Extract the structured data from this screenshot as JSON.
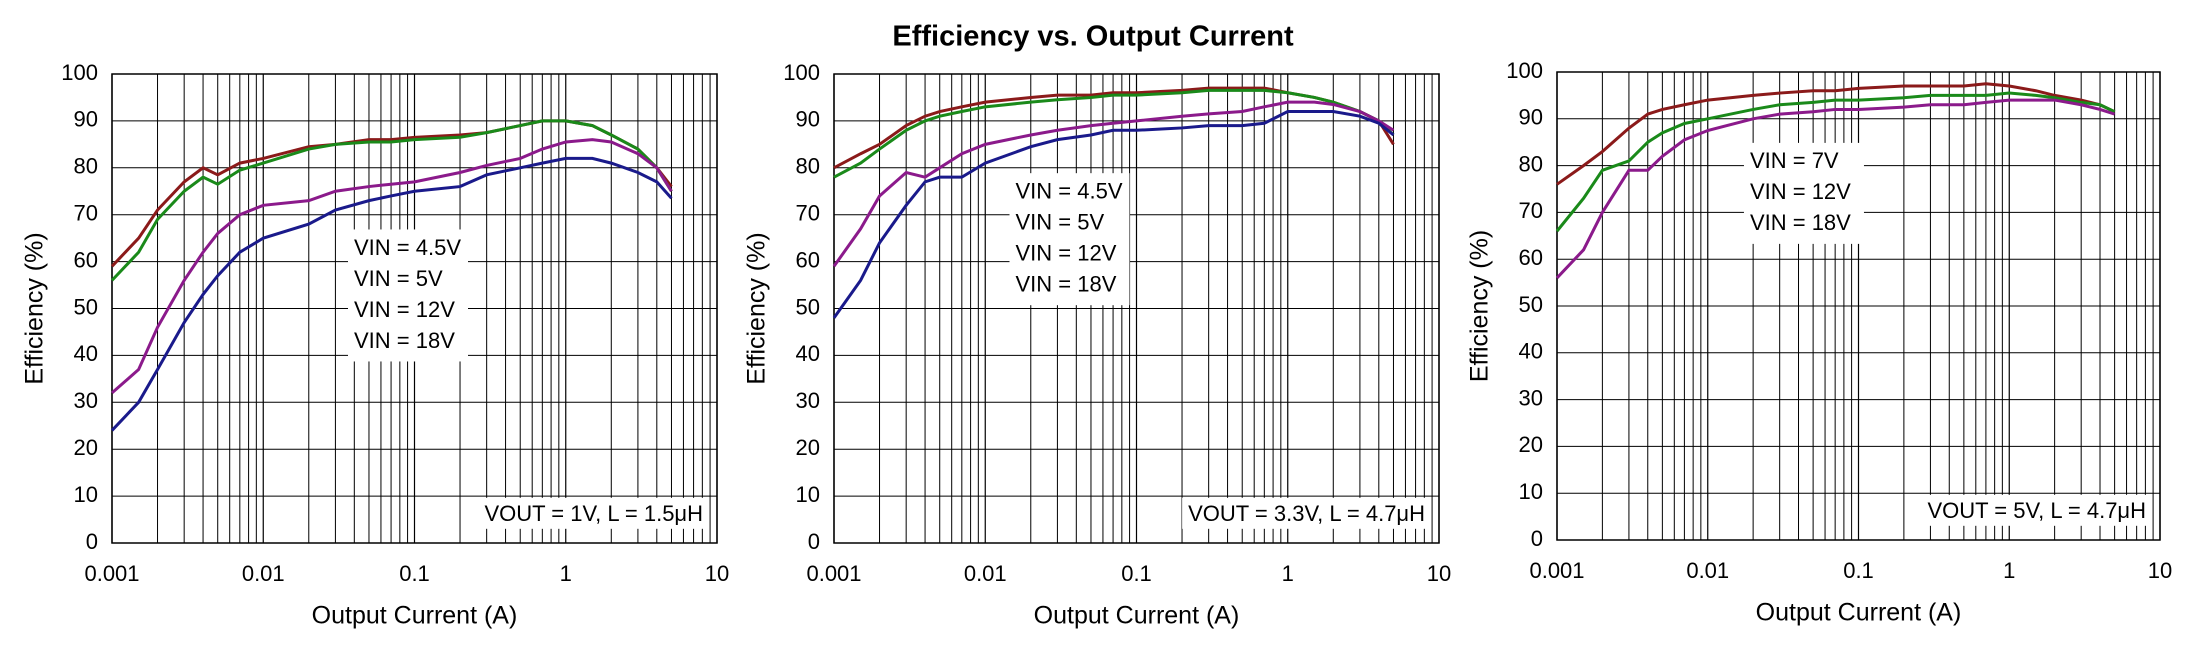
{
  "title": "Efficiency vs. Output Current",
  "chart_data": [
    {
      "type": "line",
      "x_label": "Output Current (A)",
      "y_label": "Efficiency (%)",
      "annotation": "VOUT = 1V, L = 1.5μH",
      "x_scale": "log",
      "xlim": [
        0.001,
        10
      ],
      "xticks": [
        0.001,
        0.01,
        0.1,
        1,
        10
      ],
      "ylim": [
        0,
        100
      ],
      "yticks": [
        0,
        10,
        20,
        30,
        40,
        50,
        60,
        70,
        80,
        90,
        100
      ],
      "grid": true,
      "x": [
        0.001,
        0.0015,
        0.002,
        0.003,
        0.004,
        0.005,
        0.007,
        0.01,
        0.02,
        0.03,
        0.05,
        0.07,
        0.1,
        0.2,
        0.3,
        0.5,
        0.7,
        1,
        1.5,
        2,
        3,
        4,
        5
      ],
      "series": [
        {
          "name": "VIN = 4.5V",
          "color": "#8b1a1a",
          "values": [
            59,
            65,
            71,
            77,
            80,
            78.5,
            81,
            82,
            84.5,
            85,
            86,
            86,
            86.5,
            87,
            87.5,
            89,
            90,
            90,
            89,
            87,
            84,
            80,
            76
          ]
        },
        {
          "name": "VIN = 5V",
          "color": "#1a8a1a",
          "values": [
            56,
            62,
            69,
            75,
            78,
            76.5,
            79.5,
            81,
            84,
            85,
            85.5,
            85.5,
            86,
            86.5,
            87.5,
            89,
            90,
            90,
            89,
            87,
            84,
            80,
            75
          ]
        },
        {
          "name": "VIN = 12V",
          "color": "#8b1a8b",
          "values": [
            32,
            37,
            46,
            56,
            62,
            66,
            70,
            72,
            73,
            75,
            76,
            76.5,
            77,
            79,
            80.5,
            82,
            84,
            85.5,
            86,
            85.5,
            83,
            80,
            75
          ]
        },
        {
          "name": "VIN = 18V",
          "color": "#1a1a8b",
          "values": [
            24,
            30,
            37,
            47,
            53,
            57,
            62,
            65,
            68,
            71,
            73,
            74,
            75,
            76,
            78.5,
            80,
            81,
            82,
            82,
            81,
            79,
            77,
            73.5
          ]
        }
      ]
    },
    {
      "type": "line",
      "x_label": "Output Current (A)",
      "y_label": "Efficiency (%)",
      "annotation": "VOUT = 3.3V, L = 4.7μH",
      "x_scale": "log",
      "xlim": [
        0.001,
        10
      ],
      "xticks": [
        0.001,
        0.01,
        0.1,
        1,
        10
      ],
      "ylim": [
        0,
        100
      ],
      "yticks": [
        0,
        10,
        20,
        30,
        40,
        50,
        60,
        70,
        80,
        90,
        100
      ],
      "grid": true,
      "x": [
        0.001,
        0.0015,
        0.002,
        0.003,
        0.004,
        0.005,
        0.007,
        0.01,
        0.02,
        0.03,
        0.05,
        0.07,
        0.1,
        0.2,
        0.3,
        0.5,
        0.7,
        1,
        1.5,
        2,
        3,
        4,
        5
      ],
      "series": [
        {
          "name": "VIN = 4.5V",
          "color": "#8b1a1a",
          "values": [
            80,
            83,
            85,
            89,
            91,
            92,
            93,
            94,
            95,
            95.5,
            95.5,
            96,
            96,
            96.5,
            97,
            97,
            97,
            96,
            95,
            94,
            92,
            90,
            85
          ]
        },
        {
          "name": "VIN = 5V",
          "color": "#1a8a1a",
          "values": [
            78,
            81,
            84,
            88,
            90,
            91,
            92,
            93,
            94,
            94.5,
            95,
            95.5,
            95.5,
            96,
            96.5,
            96.5,
            96.5,
            96,
            95,
            94,
            92,
            90,
            87
          ]
        },
        {
          "name": "VIN = 12V",
          "color": "#8b1a8b",
          "values": [
            59,
            67,
            74,
            79,
            78,
            80,
            83,
            85,
            87,
            88,
            89,
            89.5,
            90,
            91,
            91.5,
            92,
            93,
            94,
            94,
            93.5,
            92,
            90,
            88
          ]
        },
        {
          "name": "VIN = 18V",
          "color": "#1a1a8b",
          "values": [
            48,
            56,
            64,
            72,
            77,
            78,
            78,
            81,
            84.5,
            86,
            87,
            88,
            88,
            88.5,
            89,
            89,
            89.5,
            92,
            92,
            92,
            91,
            89.5,
            87
          ]
        }
      ]
    },
    {
      "type": "line",
      "x_label": "Output Current (A)",
      "y_label": "Efficiency (%)",
      "annotation": "VOUT = 5V, L = 4.7μH",
      "x_scale": "log",
      "xlim": [
        0.001,
        10
      ],
      "xticks": [
        0.001,
        0.01,
        0.1,
        1,
        10
      ],
      "ylim": [
        0,
        100
      ],
      "yticks": [
        0,
        10,
        20,
        30,
        40,
        50,
        60,
        70,
        80,
        90,
        100
      ],
      "grid": true,
      "x": [
        0.001,
        0.0015,
        0.002,
        0.003,
        0.004,
        0.005,
        0.007,
        0.01,
        0.02,
        0.03,
        0.05,
        0.07,
        0.1,
        0.2,
        0.3,
        0.5,
        0.7,
        1,
        1.5,
        2,
        3,
        4,
        5
      ],
      "series": [
        {
          "name": "VIN = 7V",
          "color": "#8b1a1a",
          "values": [
            76,
            80,
            83,
            88,
            91,
            92,
            93,
            94,
            95,
            95.5,
            96,
            96,
            96.5,
            97,
            97,
            97,
            97.5,
            97,
            96,
            95,
            94,
            93,
            91.5
          ]
        },
        {
          "name": "VIN = 12V",
          "color": "#1a8a1a",
          "values": [
            66,
            73,
            79,
            81,
            85,
            87,
            89,
            90,
            92,
            93,
            93.5,
            94,
            94,
            94.5,
            95,
            95,
            95,
            95.5,
            95,
            94.5,
            93.5,
            93,
            91.5
          ]
        },
        {
          "name": "VIN = 18V",
          "color": "#8b1a8b",
          "values": [
            56,
            62,
            70,
            79,
            79,
            82,
            85.5,
            87.5,
            90,
            91,
            91.5,
            92,
            92,
            92.5,
            93,
            93,
            93.5,
            94,
            94,
            94,
            93,
            92,
            91
          ]
        }
      ]
    }
  ]
}
